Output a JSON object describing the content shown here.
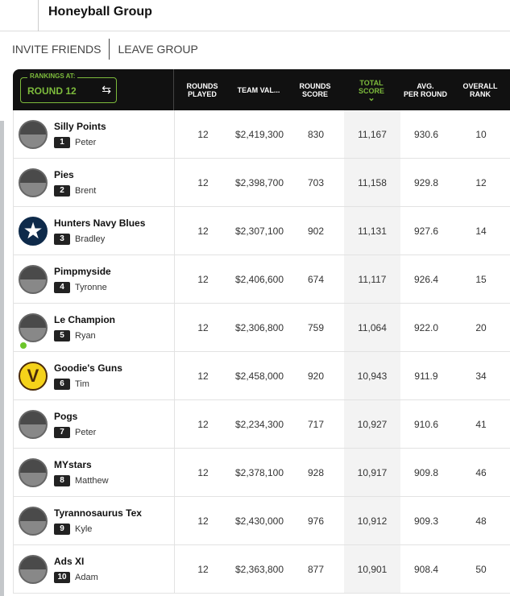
{
  "header": {
    "title": "Honeyball Group"
  },
  "actions": {
    "invite": "INVITE FRIENDS",
    "leave": "LEAVE GROUP"
  },
  "rankings": {
    "label": "RANKINGS AT:",
    "value": "ROUND 12"
  },
  "columns": [
    [
      "ROUNDS",
      "PLAYED"
    ],
    [
      "TEAM VAL..."
    ],
    [
      "ROUNDS",
      "SCORE"
    ],
    [
      "TOTAL",
      "SCORE"
    ],
    [
      "AVG.",
      "PER ROUND"
    ],
    [
      "OVERALL",
      "RANK"
    ]
  ],
  "rows": [
    {
      "team": "Silly Points",
      "pos": "1",
      "coach": "Peter",
      "played": "12",
      "value": "$2,419,300",
      "rscore": "830",
      "total": "11,167",
      "avg": "930.6",
      "rank": "10",
      "avatar": "default"
    },
    {
      "team": "Pies",
      "pos": "2",
      "coach": "Brent",
      "played": "12",
      "value": "$2,398,700",
      "rscore": "703",
      "total": "11,158",
      "avg": "929.8",
      "rank": "12",
      "avatar": "default"
    },
    {
      "team": "Hunters Navy Blues",
      "pos": "3",
      "coach": "Bradley",
      "played": "12",
      "value": "$2,307,100",
      "rscore": "902",
      "total": "11,131",
      "avg": "927.6",
      "rank": "14",
      "avatar": "star"
    },
    {
      "team": "Pimpmyside",
      "pos": "4",
      "coach": "Tyronne",
      "played": "12",
      "value": "$2,406,600",
      "rscore": "674",
      "total": "11,117",
      "avg": "926.4",
      "rank": "15",
      "avatar": "default"
    },
    {
      "team": "Le Champion",
      "pos": "5",
      "coach": "Ryan",
      "played": "12",
      "value": "$2,306,800",
      "rscore": "759",
      "total": "11,064",
      "avg": "922.0",
      "rank": "20",
      "avatar": "default",
      "online": true
    },
    {
      "team": "Goodie's Guns",
      "pos": "6",
      "coach": "Tim",
      "played": "12",
      "value": "$2,458,000",
      "rscore": "920",
      "total": "10,943",
      "avg": "911.9",
      "rank": "34",
      "avatar": "v"
    },
    {
      "team": "Pogs",
      "pos": "7",
      "coach": "Peter",
      "played": "12",
      "value": "$2,234,300",
      "rscore": "717",
      "total": "10,927",
      "avg": "910.6",
      "rank": "41",
      "avatar": "default"
    },
    {
      "team": "MYstars",
      "pos": "8",
      "coach": "Matthew",
      "played": "12",
      "value": "$2,378,100",
      "rscore": "928",
      "total": "10,917",
      "avg": "909.8",
      "rank": "46",
      "avatar": "default"
    },
    {
      "team": "Tyrannosaurus Tex",
      "pos": "9",
      "coach": "Kyle",
      "played": "12",
      "value": "$2,430,000",
      "rscore": "976",
      "total": "10,912",
      "avg": "909.3",
      "rank": "48",
      "avatar": "default"
    },
    {
      "team": "Ads XI",
      "pos": "10",
      "coach": "Adam",
      "played": "12",
      "value": "$2,363,800",
      "rscore": "877",
      "total": "10,901",
      "avg": "908.4",
      "rank": "50",
      "avatar": "default"
    }
  ]
}
